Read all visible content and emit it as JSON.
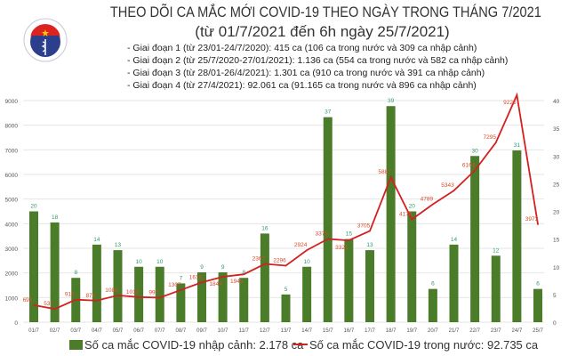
{
  "header": {
    "logo_text": "BỘ Y TẾ - MINISTRY OF HEALTH",
    "title": "THEO DÕI CA MẮC MỚI COVID-19 THEO NGÀY TRONG THÁNG 7/2021",
    "subtitle": "(từ 01/7/2021 đến 6h ngày 25/7/2021)",
    "stages": [
      "- Giai đoạn 1 (từ 23/01-24/7/2020): 415 ca (106 ca trong nước và 309 ca nhập cảnh)",
      "- Giai đoạn 2 (từ 25/7/2020-27/01/2021): 1.136 ca (554 ca trong nước và 582 ca nhập cảnh)",
      "- Giai đoạn 3 (từ 28/01-26/4/2021): 1.301 ca (910 ca trong nước và 391 ca nhập cảnh)",
      "- Giai đoạn 4 (từ 27/4/2021): 92.061 ca (91.165 ca trong nước và 896 ca nhập cảnh)"
    ]
  },
  "chart_data": {
    "type": "bar+line",
    "categories": [
      "01/7",
      "02/7",
      "03/7",
      "04/7",
      "05/7",
      "06/7",
      "07/7",
      "08/7",
      "09/7",
      "10/7",
      "11/7",
      "12/7",
      "13/7",
      "14/7",
      "15/7",
      "16/7",
      "17/7",
      "18/7",
      "19/7",
      "20/7",
      "21/7",
      "22/7",
      "23/7",
      "24/7",
      "25/7"
    ],
    "series": [
      {
        "name": "Số ca mắc COVID-19 nhập cảnh: 2.178 ca",
        "type": "bar",
        "axis": "right",
        "color": "#4a7c2a",
        "label_color": "#2e9c6a",
        "values": [
          20,
          18,
          8,
          14,
          13,
          10,
          10,
          7,
          9,
          9,
          8,
          16,
          5,
          10,
          37,
          15,
          13,
          39,
          20,
          6,
          14,
          30,
          12,
          31,
          6
        ]
      },
      {
        "name": "Số ca mắc COVID-19 trong nước: 92.735 ca",
        "type": "line",
        "axis": "left",
        "color": "#d42020",
        "label_color": "#d84a2a",
        "values": [
          693,
          537,
          914,
          876,
          1089,
          1019,
          997,
          1307,
          1616,
          1844,
          1945,
          2367,
          2296,
          2924,
          3379,
          3321,
          3705,
          5887,
          4175,
          4789,
          5343,
          6164,
          7295,
          9225,
          3973
        ]
      }
    ],
    "y_left": {
      "range": [
        0,
        9000
      ],
      "ticks": [
        "0",
        "1000",
        "2000",
        "3000",
        "4000",
        "5000",
        "6000",
        "7000",
        "8000",
        "9000"
      ]
    },
    "y_right": {
      "range": [
        0,
        40
      ],
      "ticks": [
        "0",
        "5",
        "10",
        "15",
        "20",
        "25",
        "30",
        "35",
        "40"
      ]
    },
    "grid": true,
    "legend": "bottom"
  }
}
